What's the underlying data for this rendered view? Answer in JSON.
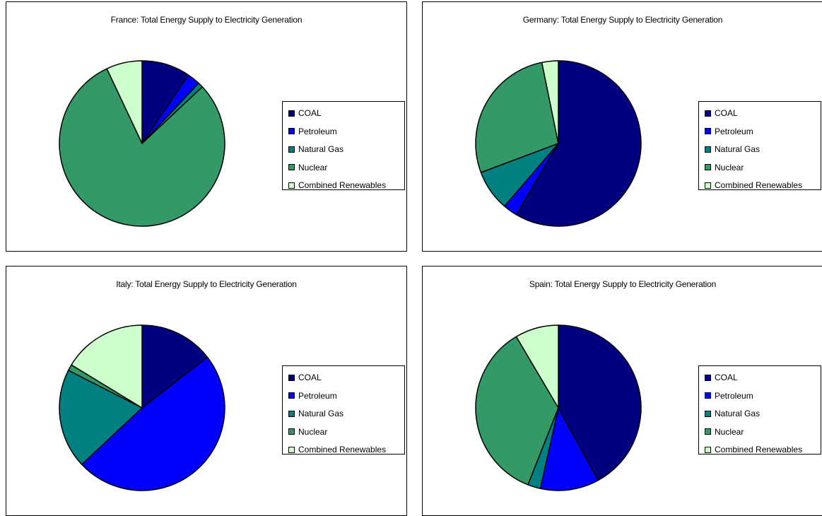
{
  "chart_data": [
    {
      "type": "pie",
      "title": "France: Total Energy Supply to Electricity Generation",
      "categories": [
        "COAL",
        "Petroleum",
        "Natural Gas",
        "Nuclear",
        "Combined Renewables"
      ],
      "values": [
        9.5,
        2.5,
        1.0,
        80.0,
        7.0
      ],
      "colors": [
        "#000080",
        "#0000ff",
        "#008080",
        "#339966",
        "#ccffcc"
      ],
      "legend_position": "right"
    },
    {
      "type": "pie",
      "title": "Germany: Total Energy Supply to Electricity Generation",
      "categories": [
        "COAL",
        "Petroleum",
        "Natural Gas",
        "Nuclear",
        "Combined Renewables"
      ],
      "values": [
        58.5,
        2.8,
        8.0,
        27.5,
        3.2
      ],
      "colors": [
        "#000080",
        "#0000ff",
        "#008080",
        "#339966",
        "#ccffcc"
      ],
      "legend_position": "right"
    },
    {
      "type": "pie",
      "title": "Italy: Total Energy Supply to Electricity Generation",
      "categories": [
        "COAL",
        "Petroleum",
        "Natural Gas",
        "Nuclear",
        "Combined Renewables"
      ],
      "values": [
        14.5,
        48.5,
        19.5,
        1.2,
        16.3
      ],
      "colors": [
        "#000080",
        "#0000ff",
        "#008080",
        "#339966",
        "#ccffcc"
      ],
      "legend_position": "right"
    },
    {
      "type": "pie",
      "title": "Spain: Total Energy Supply to Electricity Generation",
      "categories": [
        "COAL",
        "Petroleum",
        "Natural Gas",
        "Nuclear",
        "Combined Renewables"
      ],
      "values": [
        42.0,
        11.5,
        2.5,
        35.5,
        8.5
      ],
      "colors": [
        "#000080",
        "#0000ff",
        "#008080",
        "#339966",
        "#ccffcc"
      ],
      "legend_position": "right"
    }
  ]
}
